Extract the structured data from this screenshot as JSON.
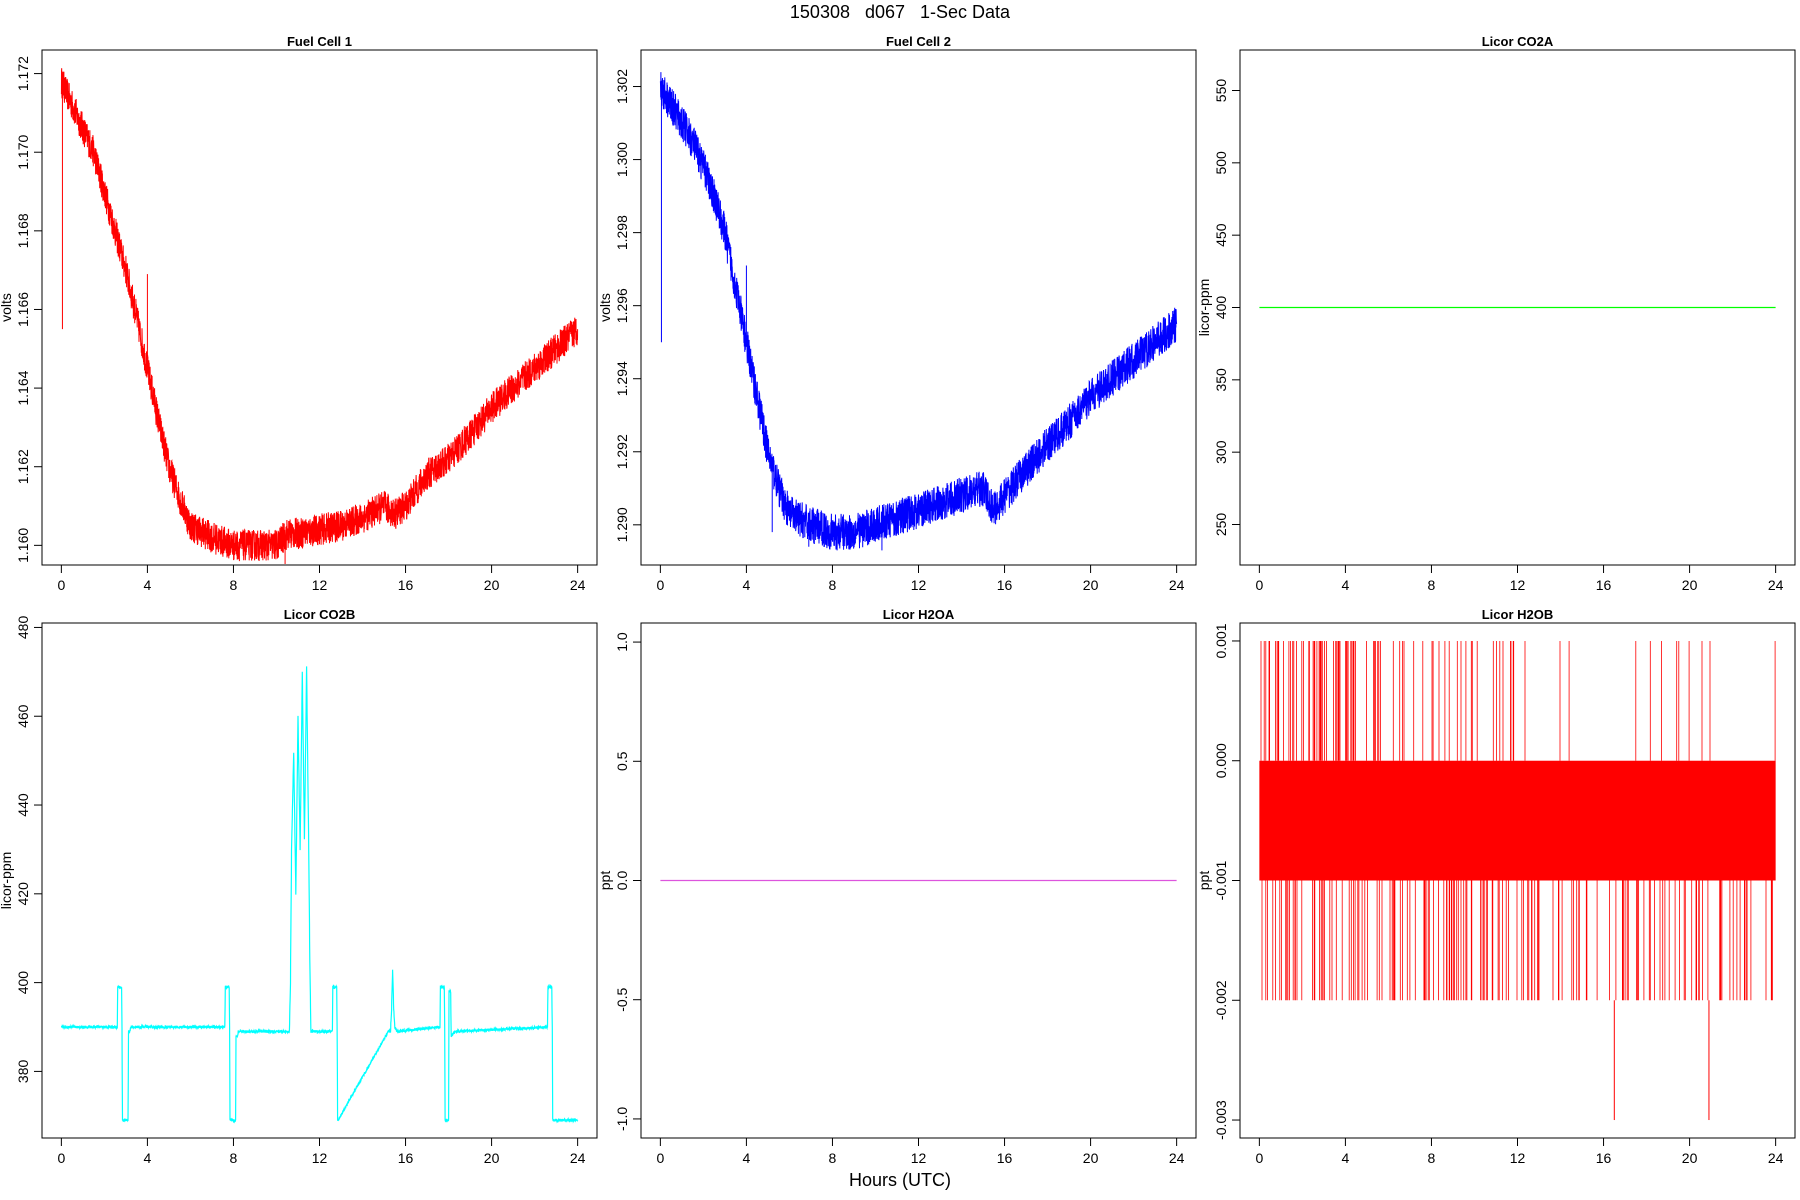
{
  "page": {
    "title": "150308   d067   1-Sec Data",
    "xlabel": "Hours (UTC)"
  },
  "chart_data": [
    {
      "type": "line",
      "title": "Fuel Cell 1",
      "ylabel": "volts",
      "xlabel": "",
      "color": "#ff0000",
      "xlim": [
        -0.9,
        24.9
      ],
      "ylim": [
        1.1595,
        1.1726
      ],
      "x_ticks": [
        0,
        4,
        8,
        12,
        16,
        20,
        24
      ],
      "x_tick_labels": [
        "0",
        "4",
        "8",
        "12",
        "16",
        "20",
        "24"
      ],
      "y_ticks": [
        1.16,
        1.162,
        1.164,
        1.166,
        1.168,
        1.17,
        1.172
      ],
      "y_tick_labels": [
        "1.160",
        "1.162",
        "1.164",
        "1.166",
        "1.168",
        "1.170",
        "1.172"
      ],
      "noise": 0.0004,
      "series": [
        {
          "x": [
            0,
            0.5,
            1,
            1.5,
            2,
            2.5,
            3,
            3.5,
            4,
            4.5,
            5,
            5.5,
            6,
            7,
            8,
            9,
            10,
            10.5,
            11,
            12,
            13,
            14,
            15,
            15.5,
            16,
            17,
            18,
            19,
            20,
            21,
            22,
            23,
            24
          ],
          "y": [
            1.1718,
            1.1712,
            1.1706,
            1.17,
            1.169,
            1.168,
            1.167,
            1.1658,
            1.1645,
            1.1632,
            1.162,
            1.1612,
            1.1605,
            1.1602,
            1.16,
            1.16,
            1.16,
            1.1603,
            1.1603,
            1.1604,
            1.1605,
            1.1607,
            1.161,
            1.1608,
            1.161,
            1.1618,
            1.1622,
            1.1628,
            1.1635,
            1.164,
            1.1645,
            1.165,
            1.1655
          ]
        }
      ],
      "spikes": [
        {
          "x": 0.05,
          "y": 1.1655
        },
        {
          "x": 4.0,
          "y": 1.1669
        },
        {
          "x": 10.4,
          "y": 1.1595
        }
      ]
    },
    {
      "type": "line",
      "title": "Fuel Cell 2",
      "ylabel": "volts",
      "xlabel": "",
      "color": "#0000ff",
      "xlim": [
        -0.9,
        24.9
      ],
      "ylim": [
        1.2889,
        1.303
      ],
      "x_ticks": [
        0,
        4,
        8,
        12,
        16,
        20,
        24
      ],
      "x_tick_labels": [
        "0",
        "4",
        "8",
        "12",
        "16",
        "20",
        "24"
      ],
      "y_ticks": [
        1.29,
        1.292,
        1.294,
        1.296,
        1.298,
        1.3,
        1.302
      ],
      "y_tick_labels": [
        "1.290",
        "1.292",
        "1.294",
        "1.296",
        "1.298",
        "1.300",
        "1.302"
      ],
      "noise": 0.0005,
      "series": [
        {
          "x": [
            0,
            0.5,
            1,
            1.5,
            2,
            2.5,
            3,
            3.5,
            4,
            4.5,
            5,
            5.5,
            6,
            7,
            8,
            9,
            10,
            11,
            12,
            13,
            14,
            15,
            15.5,
            16,
            17,
            18,
            19,
            20,
            21,
            22,
            23,
            24
          ],
          "y": [
            1.302,
            1.3015,
            1.301,
            1.3005,
            1.2998,
            1.299,
            1.298,
            1.2965,
            1.295,
            1.2935,
            1.292,
            1.291,
            1.2903,
            1.29,
            1.2898,
            1.2898,
            1.29,
            1.2902,
            1.2904,
            1.2906,
            1.2908,
            1.291,
            1.2904,
            1.2908,
            1.2915,
            1.2922,
            1.2928,
            1.2935,
            1.294,
            1.2945,
            1.295,
            1.2955
          ]
        }
      ],
      "spikes": [
        {
          "x": 0.05,
          "y": 1.295
        },
        {
          "x": 4.0,
          "y": 1.2971
        },
        {
          "x": 5.2,
          "y": 1.2898
        },
        {
          "x": 6.9,
          "y": 1.2894
        },
        {
          "x": 10.3,
          "y": 1.2893
        }
      ]
    },
    {
      "type": "line",
      "title": "Licor CO2A",
      "ylabel": "licor-ppm",
      "xlabel": "",
      "color": "#00ff00",
      "xlim": [
        -0.9,
        24.9
      ],
      "ylim": [
        222,
        578
      ],
      "x_ticks": [
        0,
        4,
        8,
        12,
        16,
        20,
        24
      ],
      "x_tick_labels": [
        "0",
        "4",
        "8",
        "12",
        "16",
        "20",
        "24"
      ],
      "y_ticks": [
        250,
        300,
        350,
        400,
        450,
        500,
        550
      ],
      "y_tick_labels": [
        "250",
        "300",
        "350",
        "400",
        "450",
        "500",
        "550"
      ],
      "noise": 0,
      "series": [
        {
          "x": [
            0,
            24
          ],
          "y": [
            400,
            400
          ]
        }
      ],
      "spikes": []
    },
    {
      "type": "line",
      "title": "Licor CO2B",
      "ylabel": "licor-ppm",
      "xlabel": "",
      "color": "#00ffff",
      "xlim": [
        -0.9,
        24.9
      ],
      "ylim": [
        365,
        481
      ],
      "x_ticks": [
        0,
        4,
        8,
        12,
        16,
        20,
        24
      ],
      "x_tick_labels": [
        "0",
        "4",
        "8",
        "12",
        "16",
        "20",
        "24"
      ],
      "y_ticks": [
        380,
        400,
        420,
        440,
        460,
        480
      ],
      "y_tick_labels": [
        "380",
        "400",
        "420",
        "440",
        "460",
        "480"
      ],
      "noise": 0.3,
      "series": [
        {
          "x": [
            0,
            2.6,
            2.62,
            2.8,
            2.82,
            2.84,
            2.86,
            3.1,
            3.12,
            3.2,
            3.22,
            3.3,
            7.6,
            7.62,
            7.8,
            7.82,
            7.84,
            7.86,
            8.1,
            8.12,
            8.2,
            8.22,
            8.3,
            10.5,
            10.6,
            10.65,
            10.7,
            10.8,
            10.9,
            11.0,
            11.1,
            11.2,
            11.3,
            11.4,
            11.5,
            11.55,
            11.6,
            12.6,
            12.62,
            12.8,
            12.82,
            12.84,
            12.86,
            15.2,
            15.3,
            15.35,
            15.4,
            15.45,
            15.5,
            15.6,
            17.6,
            17.62,
            17.8,
            17.82,
            17.84,
            17.86,
            18.0,
            18.02,
            18.1,
            18.12,
            18.3,
            22.6,
            22.62,
            22.8,
            22.82,
            22.84,
            22.86,
            24
          ],
          "y": [
            390,
            390,
            399,
            399,
            390,
            369,
            369,
            369,
            389,
            389,
            390,
            390,
            390,
            399,
            399,
            390,
            369,
            369,
            369,
            388,
            388,
            389,
            389,
            389,
            389,
            400,
            430,
            452,
            420,
            460,
            430,
            470,
            432,
            471,
            430,
            405,
            389,
            389,
            399,
            399,
            390,
            369,
            369,
            389,
            389,
            394,
            403,
            394,
            390,
            389,
            390,
            399,
            399,
            390,
            369,
            369,
            369,
            398,
            398,
            388,
            389,
            390,
            399,
            399,
            390,
            369,
            369,
            369
          ]
        }
      ],
      "spikes": []
    },
    {
      "type": "line",
      "title": "Licor H2OA",
      "ylabel": "ppt",
      "xlabel": "",
      "color": "#dd55dd",
      "xlim": [
        -0.9,
        24.9
      ],
      "ylim": [
        -1.08,
        1.08
      ],
      "x_ticks": [
        0,
        4,
        8,
        12,
        16,
        20,
        24
      ],
      "x_tick_labels": [
        "0",
        "4",
        "8",
        "12",
        "16",
        "20",
        "24"
      ],
      "y_ticks": [
        -1.0,
        -0.5,
        0.0,
        0.5,
        1.0
      ],
      "y_tick_labels": [
        "-1.0",
        "-0.5",
        "0.0",
        "0.5",
        "1.0"
      ],
      "noise": 0,
      "series": [
        {
          "x": [
            0,
            24
          ],
          "y": [
            0,
            0
          ]
        }
      ],
      "spikes": []
    },
    {
      "type": "line",
      "title": "Licor H2OB",
      "ylabel": "ppt",
      "xlabel": "",
      "color": "#ff0000",
      "xlim": [
        -0.9,
        24.9
      ],
      "ylim": [
        -0.00315,
        0.00115
      ],
      "x_ticks": [
        0,
        4,
        8,
        12,
        16,
        20,
        24
      ],
      "x_tick_labels": [
        "0",
        "4",
        "8",
        "12",
        "16",
        "20",
        "24"
      ],
      "y_ticks": [
        -0.003,
        -0.002,
        -0.001,
        0.0,
        0.001
      ],
      "y_tick_labels": [
        "-0.003",
        "-0.002",
        "-0.001",
        "0.000",
        "0.001"
      ],
      "noise": 0,
      "band": {
        "x0": 0,
        "x1": 24,
        "y0": -0.001,
        "y1": 0.0
      },
      "series": [],
      "spikes": [
        {
          "x": 16.5,
          "y": -0.003
        },
        {
          "x": 20.9,
          "y": -0.003
        }
      ],
      "quantized": {
        "up": 0.001,
        "down": -0.002,
        "up_segments": [
          [
            0,
            5.5
          ],
          [
            5.5,
            12.0
          ],
          [
            12.0,
            24.0
          ]
        ],
        "up_density": [
          0.45,
          0.25,
          0.04
        ],
        "down_density": [
          0.3,
          0.35,
          0.25
        ]
      }
    }
  ]
}
